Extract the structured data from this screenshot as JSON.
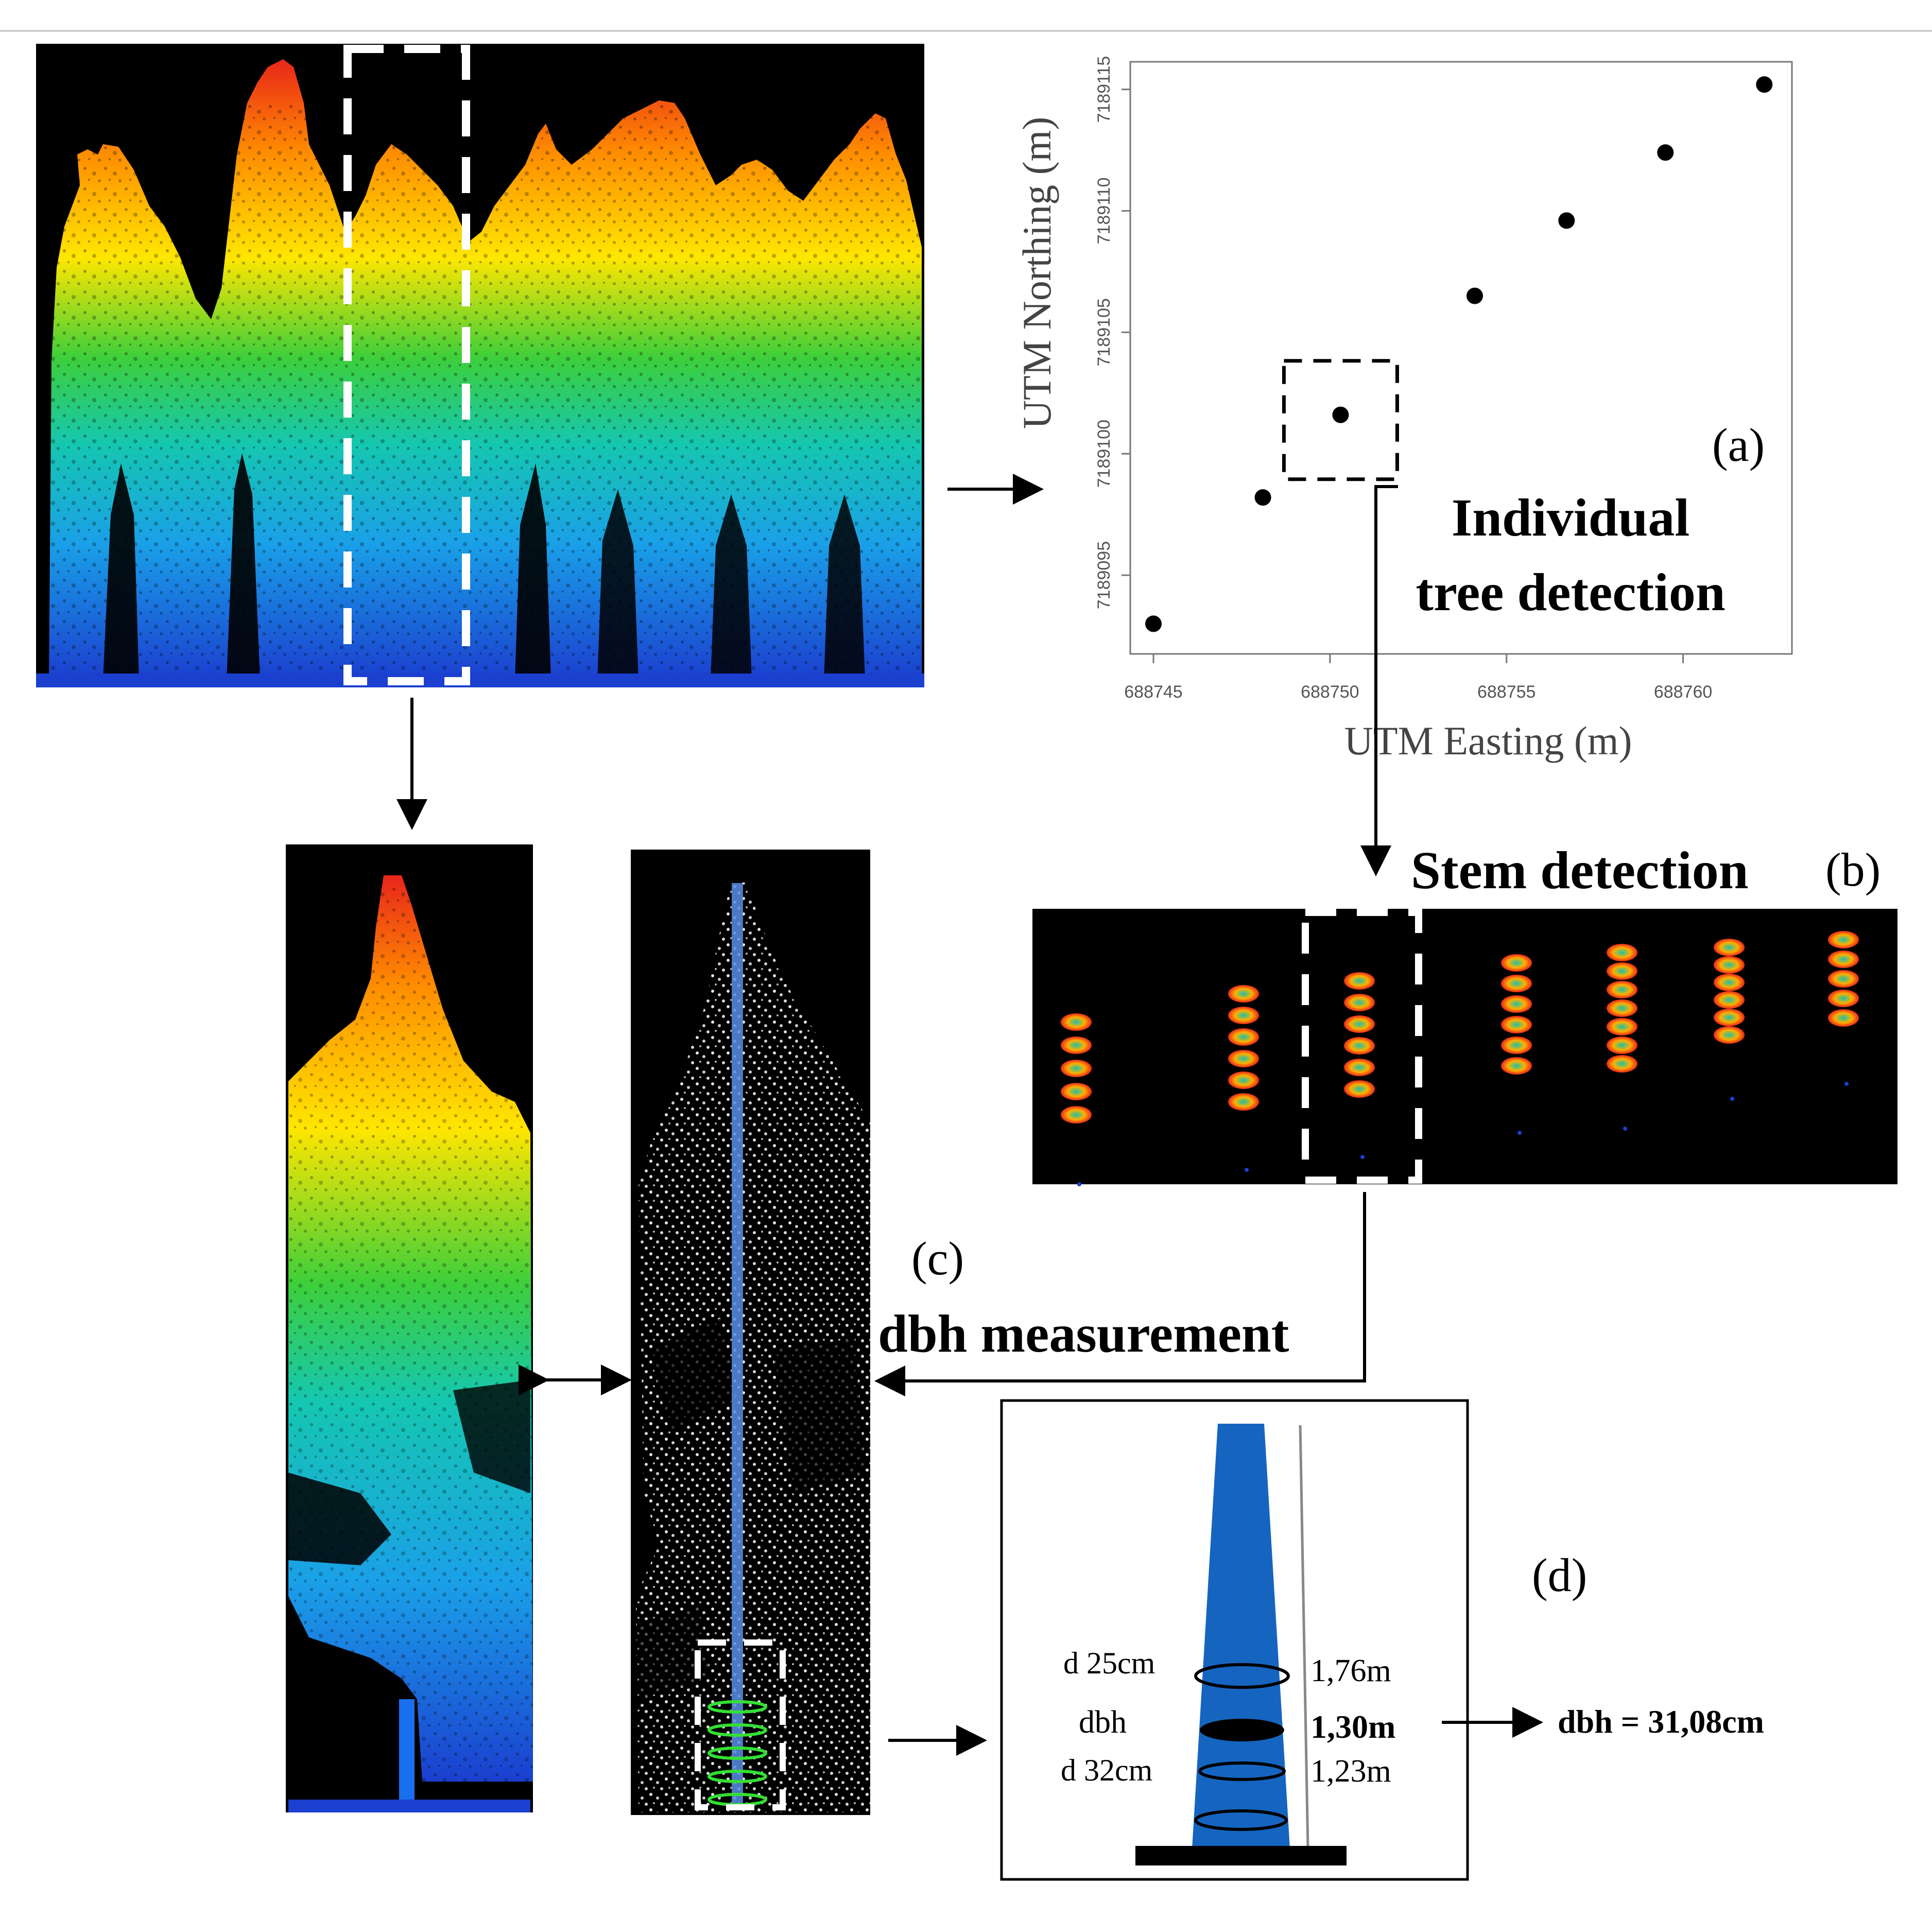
{
  "labels": {
    "panel_a": "(a)",
    "panel_a_title_1": "Individual",
    "panel_a_title_2": "tree detection",
    "panel_b_title": "Stem detection",
    "panel_b": "(b)",
    "panel_c": "(c)",
    "panel_c_title": "dbh measurement",
    "panel_d": "(d)"
  },
  "dbh_diagram": {
    "left_labels": [
      "d 25cm",
      "dbh",
      "d 32cm"
    ],
    "right_labels": [
      "1,76m",
      "1,30m",
      "1,23m"
    ],
    "result": "dbh = 31,08cm"
  },
  "colors": {
    "stem_blue": "#1565c0",
    "arrow": "#000000",
    "image_bg": "#000000"
  },
  "chart_data": {
    "type": "scatter",
    "xlabel": "UTM Easting (m)",
    "ylabel": "UTM Northing (m)",
    "xlim": [
      688745,
      688762.5
    ],
    "ylim": [
      7189092.5,
      7189115.5
    ],
    "xticks": [
      688745,
      688750,
      688755,
      688760
    ],
    "yticks": [
      7189095,
      7189100,
      7189105,
      7189110,
      7189115
    ],
    "x": [
      688745.0,
      688748.1,
      688750.3,
      688754.1,
      688756.7,
      688759.5,
      688762.3
    ],
    "y": [
      7189093.0,
      7189098.2,
      7189101.6,
      7189106.5,
      7189109.6,
      7189112.4,
      7189115.2
    ],
    "highlighted_index": 2
  }
}
